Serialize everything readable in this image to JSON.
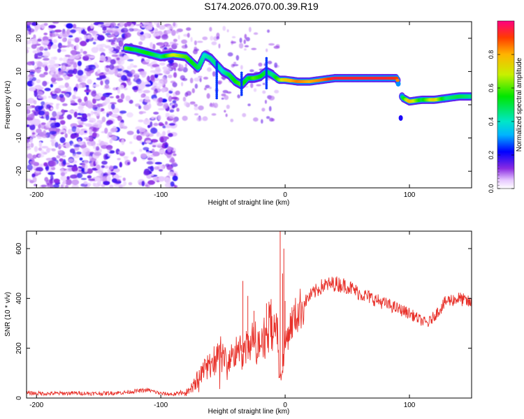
{
  "title": "S174.2026.070.00.39.R19",
  "chart_data": [
    {
      "type": "heatmap",
      "xlabel": "Height of straight line (km)",
      "ylabel": "Frequency (Hz)",
      "xlim": [
        -208,
        150
      ],
      "ylim": [
        -25,
        25
      ],
      "xticks": [
        -200,
        -100,
        0,
        100
      ],
      "yticks": [
        -20,
        -10,
        0,
        10,
        20
      ],
      "colorbar": {
        "label": "Normalized spectral amplitude",
        "range": [
          0,
          1
        ],
        "ticks": [
          0.0,
          0.2,
          0.4,
          0.6,
          0.8
        ]
      },
      "ridge": {
        "x": [
          -128,
          -120,
          -110,
          -100,
          -90,
          -80,
          -70,
          -65,
          -60,
          -55,
          -50,
          -45,
          -40,
          -35,
          -30,
          -25,
          -20,
          -15,
          -10,
          -5,
          0,
          10,
          20,
          30,
          40,
          50,
          60,
          70,
          80,
          90,
          93,
          95,
          100,
          110,
          120,
          130,
          140,
          150
        ],
        "y": [
          17,
          16.5,
          15.5,
          14.5,
          15,
          14.5,
          11,
          15,
          14,
          12,
          10,
          9,
          7,
          6,
          8,
          8,
          8.5,
          10,
          9,
          7.5,
          7.5,
          7,
          7,
          7.5,
          8,
          8,
          8,
          8,
          8,
          8,
          3,
          2,
          1,
          1.5,
          1.5,
          2,
          2.5,
          2.5
        ],
        "amplitude": [
          0.6,
          0.5,
          0.55,
          0.45,
          0.7,
          0.6,
          0.5,
          0.4,
          0.45,
          0.45,
          0.4,
          0.5,
          0.55,
          0.6,
          0.5,
          0.6,
          0.55,
          0.5,
          0.45,
          0.6,
          0.75,
          0.85,
          0.8,
          0.85,
          0.95,
          0.95,
          0.95,
          0.95,
          0.95,
          0.9,
          0.45,
          0.5,
          0.8,
          0.5,
          0.75,
          0.45,
          0.5,
          0.45
        ]
      }
    },
    {
      "type": "line",
      "xlabel": "Height of straight line (km)",
      "ylabel": "SNR (10 * v/v)",
      "xlim": [
        -208,
        150
      ],
      "ylim": [
        0,
        670
      ],
      "xticks": [
        -200,
        -100,
        0,
        100
      ],
      "yticks": [
        0,
        200,
        400,
        600
      ],
      "color": "#e8312a",
      "x": [
        -208,
        -190,
        -170,
        -150,
        -130,
        -120,
        -110,
        -100,
        -90,
        -80,
        -75,
        -70,
        -65,
        -60,
        -55,
        -50,
        -45,
        -40,
        -35,
        -30,
        -25,
        -20,
        -15,
        -12,
        -10,
        -8,
        -6,
        -5,
        -3,
        0,
        5,
        10,
        15,
        20,
        25,
        30,
        40,
        50,
        60,
        70,
        80,
        90,
        100,
        110,
        115,
        120,
        125,
        130,
        140,
        150
      ],
      "y": [
        20,
        18,
        20,
        18,
        22,
        28,
        32,
        18,
        15,
        22,
        40,
        80,
        110,
        140,
        160,
        160,
        150,
        180,
        180,
        200,
        210,
        230,
        250,
        300,
        320,
        250,
        330,
        100,
        80,
        220,
        300,
        340,
        380,
        410,
        430,
        450,
        460,
        450,
        420,
        400,
        380,
        360,
        340,
        310,
        300,
        330,
        360,
        390,
        400,
        380
      ]
    }
  ]
}
